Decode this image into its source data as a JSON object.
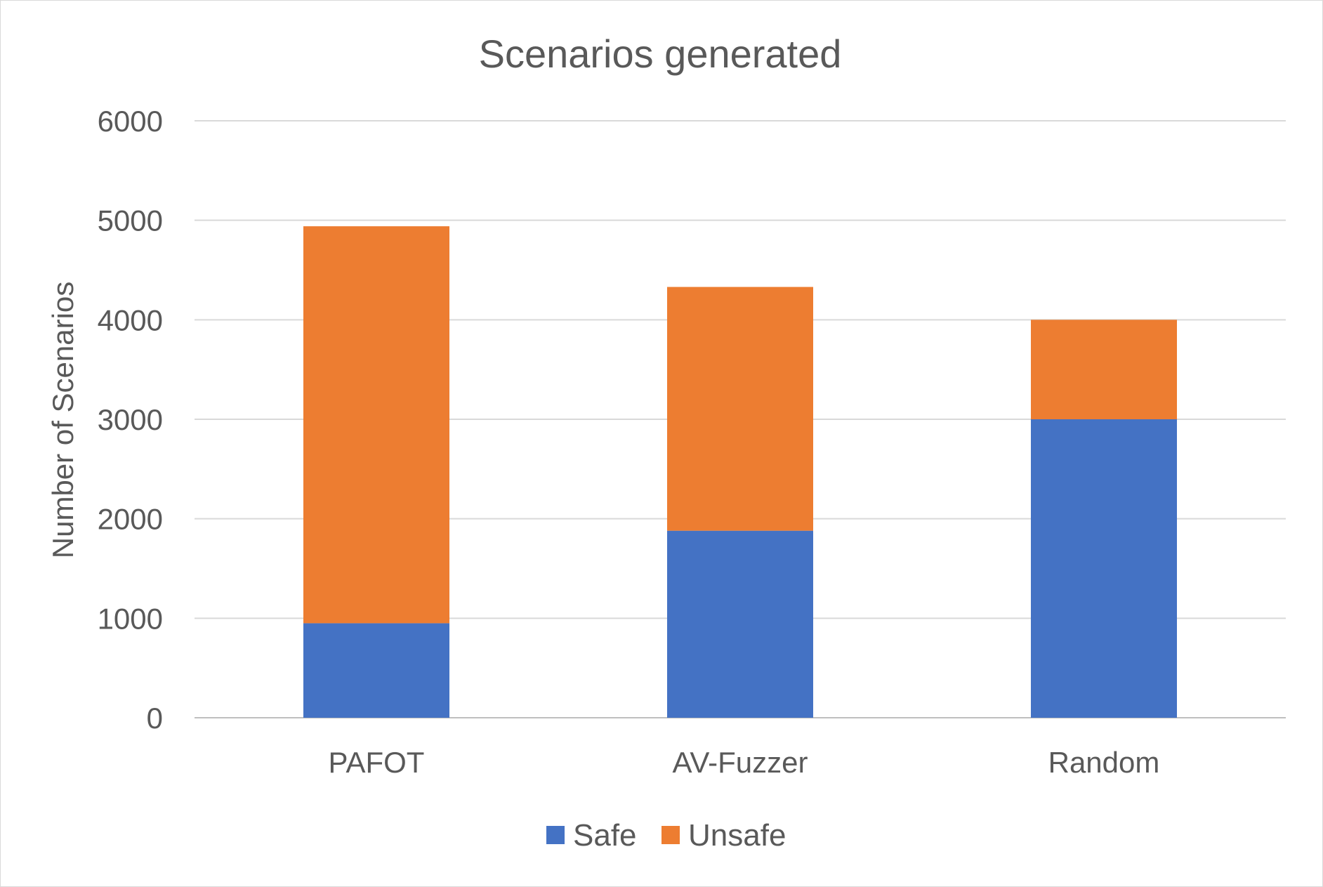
{
  "chart_data": {
    "type": "bar",
    "stacked": true,
    "title": "Scenarios generated",
    "xlabel": "",
    "ylabel": "Number of Scenarios",
    "categories": [
      "PAFOT",
      "AV-Fuzzer",
      "Random"
    ],
    "series": [
      {
        "name": "Safe",
        "color": "#4472c4",
        "values": [
          950,
          1880,
          3000
        ]
      },
      {
        "name": "Unsafe",
        "color": "#ed7d31",
        "values": [
          3990,
          2450,
          1000
        ]
      }
    ],
    "ylim": [
      0,
      6000
    ],
    "yticks": [
      0,
      1000,
      2000,
      3000,
      4000,
      5000,
      6000
    ],
    "grid": true,
    "legend_position": "bottom"
  }
}
